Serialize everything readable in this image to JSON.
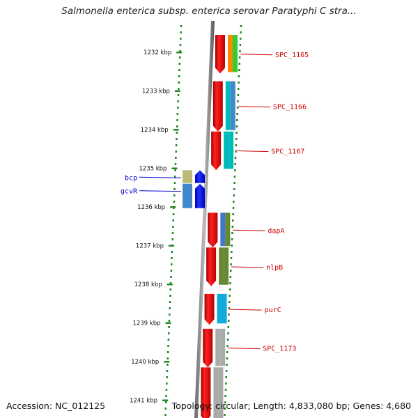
{
  "title": "Salmonella enterica subsp. enterica serovar Paratyphi C stra...",
  "footer": {
    "accession": "Accession: NC_012125",
    "topology": "Topology: circular; Length: 4,833,080 bp; Genes: 4,680"
  },
  "colors": {
    "backbone": "#888888",
    "tick": "#228822",
    "cds": "#ee0000",
    "label_right": "#cc0000",
    "label_left": "#0000cc"
  },
  "ticks": [
    {
      "label": "1232 kbp",
      "kbp": 1232
    },
    {
      "label": "1233 kbp",
      "kbp": 1233
    },
    {
      "label": "1234 kbp",
      "kbp": 1234
    },
    {
      "label": "1235 kbp",
      "kbp": 1235
    },
    {
      "label": "1236 kbp",
      "kbp": 1236
    },
    {
      "label": "1237 kbp",
      "kbp": 1237
    },
    {
      "label": "1238 kbp",
      "kbp": 1238
    },
    {
      "label": "1239 kbp",
      "kbp": 1239
    },
    {
      "label": "1240 kbp",
      "kbp": 1240
    },
    {
      "label": "1241 kbp",
      "kbp": 1241
    }
  ],
  "genes_right": [
    {
      "label": "SPC_1165",
      "start_kbp": 1231.55,
      "end_kbp": 1232.55,
      "func_color": "#ff8800",
      "cog_color": "#33cc33"
    },
    {
      "label": "SPC_1166",
      "start_kbp": 1232.75,
      "end_kbp": 1234.05,
      "func_color": "#00bbbb",
      "cog_color": "#4488cc"
    },
    {
      "label": "SPC_1167",
      "start_kbp": 1234.05,
      "end_kbp": 1235.05,
      "func_color": "#00bbbb",
      "cog_color": "#00bbbb"
    },
    {
      "label": "dapA",
      "start_kbp": 1236.15,
      "end_kbp": 1237.05,
      "func_color": "#4477cc",
      "cog_color": "#668833"
    },
    {
      "label": "nlpB",
      "start_kbp": 1237.05,
      "end_kbp": 1238.05,
      "func_color": "#668833",
      "cog_color": "#668833"
    },
    {
      "label": "purC",
      "start_kbp": 1238.25,
      "end_kbp": 1239.05,
      "func_color": "#11aadd",
      "cog_color": "#11aadd"
    },
    {
      "label": "SPC_1173",
      "start_kbp": 1239.15,
      "end_kbp": 1240.15,
      "func_color": "#aaaaaa",
      "cog_color": "#aaaaaa"
    },
    {
      "label": "",
      "start_kbp": 1240.15,
      "end_kbp": 1241.55,
      "func_color": "#aaaaaa",
      "cog_color": "#aaaaaa"
    }
  ],
  "genes_left": [
    {
      "label": "bcp",
      "start_kbp": 1235.05,
      "end_kbp": 1235.4,
      "func_color": "#bbbb77",
      "strand_color": "#0000ee"
    },
    {
      "label": "gcvR",
      "start_kbp": 1235.4,
      "end_kbp": 1236.05,
      "func_color": "#4488cc",
      "strand_color": "#0000ee"
    }
  ]
}
